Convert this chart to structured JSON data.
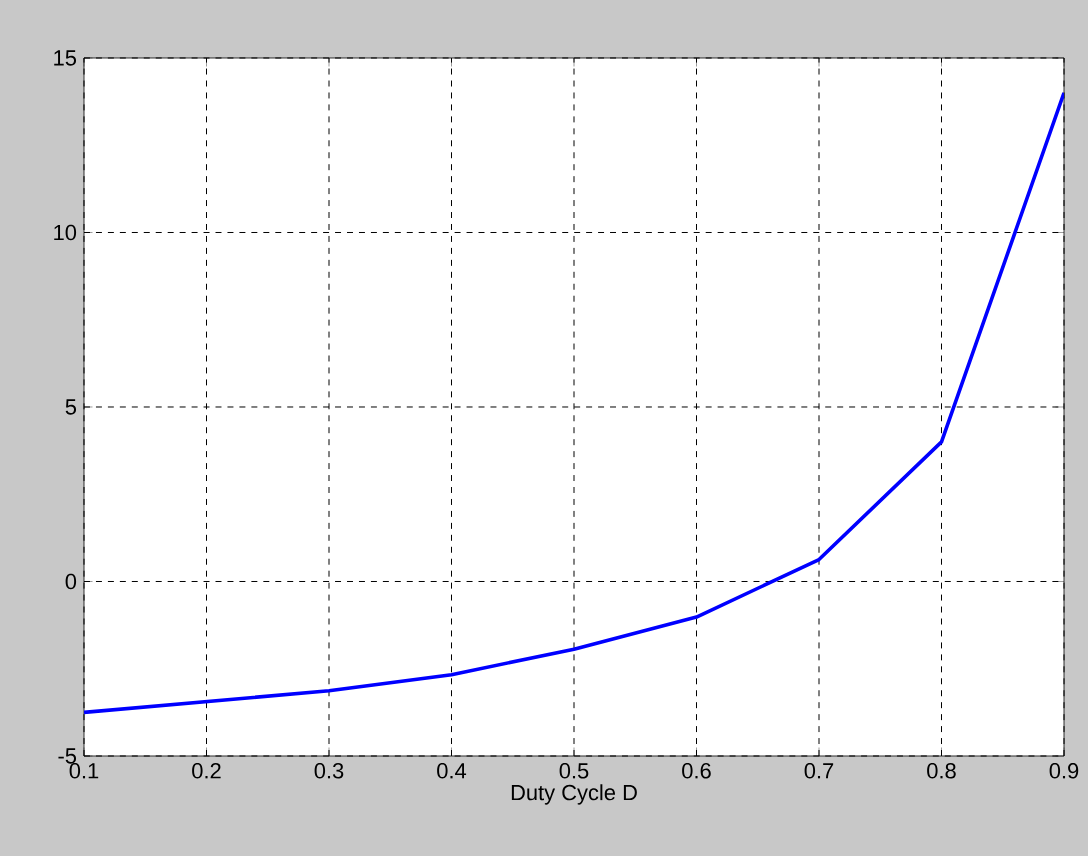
{
  "chart_data": {
    "type": "line",
    "xlabel": "Duty Cycle D",
    "x": [
      0.1,
      0.2,
      0.3,
      0.4,
      0.5,
      0.6,
      0.7,
      0.8,
      0.9
    ],
    "series": [
      {
        "color": "#0000ff",
        "values": [
          -3.75,
          -3.44,
          -3.13,
          -2.67,
          -1.94,
          -1.02,
          0.63,
          4.0,
          14.0
        ]
      }
    ],
    "xlim": [
      0.1,
      0.9
    ],
    "ylim": [
      -5,
      15
    ],
    "xticks": [
      0.1,
      0.2,
      0.3,
      0.4,
      0.5,
      0.6,
      0.7,
      0.8,
      0.9
    ],
    "yticks": [
      -5,
      0,
      5,
      10,
      15
    ],
    "grid": true,
    "line_style": "solid",
    "marker": "none"
  }
}
